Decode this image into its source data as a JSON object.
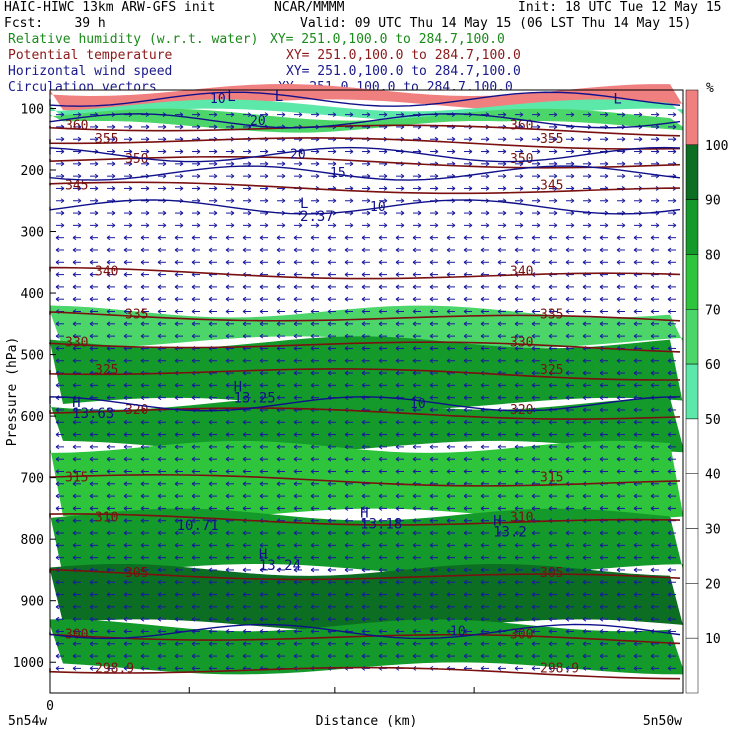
{
  "header": {
    "title_left": "HAIC-HIWC 13km ARW-GFS init",
    "org": "NCAR/MMMM",
    "init": "Init: 18 UTC Tue 12 May 15",
    "fcst": "Fcst:    39 h",
    "valid": "Valid: 09 UTC Thu 14 May 15 (06 LST Thu 14 May 15)",
    "fields": [
      {
        "name": "Relative humidity (w.r.t. water)",
        "xy": "XY= 251.0,100.0 to 284.7,100.0",
        "color": "#1a8a1a"
      },
      {
        "name": "Potential temperature",
        "xy": "XY= 251.0,100.0 to 284.7,100.0",
        "color": "#8b1a1a"
      },
      {
        "name": "Horizontal wind speed",
        "xy": "XY= 251.0,100.0 to 284.7,100.0",
        "color": "#1a1a8b"
      },
      {
        "name": "Circulation vectors",
        "xy": "XY= 251.0,100.0 to 284.7,100.0",
        "color": "#1a1a8b"
      }
    ]
  },
  "chart_data": {
    "type": "heatmap",
    "ylabel": "Pressure (hPa)",
    "xlabel": "Distance (km)",
    "x_start_label": "5n54w",
    "x_end_label": "5n50w",
    "x_zero_label": "0",
    "y_ticks": [
      100,
      200,
      300,
      400,
      500,
      600,
      700,
      800,
      900,
      1000
    ],
    "ylim": [
      1050,
      70
    ],
    "colorbar": {
      "unit": "%",
      "levels": [
        10,
        20,
        30,
        40,
        50,
        60,
        70,
        80,
        90,
        100
      ],
      "colors": [
        "#ffffff",
        "#ffffff",
        "#ffffff",
        "#ffffff",
        "#ffffff",
        "#5ce8a8",
        "#4cd66a",
        "#2ec43c",
        "#149a2a",
        "#0b6e22",
        "#f08080"
      ]
    },
    "rh_bands": [
      {
        "p_top": 70,
        "p_bot": 95,
        "rh": 100
      },
      {
        "p_top": 95,
        "p_bot": 110,
        "rh": 50
      },
      {
        "p_top": 110,
        "p_bot": 130,
        "rh": 60
      },
      {
        "p_top": 130,
        "p_bot": 470,
        "rh": 30
      },
      {
        "p_top": 430,
        "p_bot": 480,
        "rh": 60
      },
      {
        "p_top": 480,
        "p_bot": 580,
        "rh": 80
      },
      {
        "p_top": 580,
        "p_bot": 650,
        "rh": 80
      },
      {
        "p_top": 650,
        "p_bot": 760,
        "rh": 70
      },
      {
        "p_top": 760,
        "p_bot": 850,
        "rh": 80
      },
      {
        "p_top": 850,
        "p_bot": 940,
        "rh": 90
      },
      {
        "p_top": 940,
        "p_bot": 1010,
        "rh": 80
      }
    ],
    "theta_contours": [
      {
        "value": 360,
        "p": 128
      },
      {
        "value": 355,
        "p": 150
      },
      {
        "value": 350,
        "p": 182
      },
      {
        "value": 345,
        "p": 225
      },
      {
        "value": 340,
        "p": 365
      },
      {
        "value": 335,
        "p": 435
      },
      {
        "value": 330,
        "p": 480
      },
      {
        "value": 325,
        "p": 525
      },
      {
        "value": 320,
        "p": 590
      },
      {
        "value": 315,
        "p": 700
      },
      {
        "value": 310,
        "p": 765
      },
      {
        "value": 305,
        "p": 855
      },
      {
        "value": 300,
        "p": 955
      },
      {
        "value": 298.9,
        "p": 1010
      }
    ],
    "wind_contours": [
      {
        "value": 10,
        "p": 85
      },
      {
        "value": 20,
        "p": 120
      },
      {
        "value": 20,
        "p": 175
      },
      {
        "value": 15,
        "p": 205
      },
      {
        "value": 10,
        "p": 260
      },
      {
        "value": 10,
        "p": 580
      },
      {
        "value": 10,
        "p": 950
      }
    ],
    "labels": [
      {
        "text": "L",
        "x_frac": 0.395,
        "p": 262
      },
      {
        "text": "2.37",
        "x_frac": 0.395,
        "p": 283
      },
      {
        "text": "H",
        "x_frac": 0.29,
        "p": 560
      },
      {
        "text": "13.25",
        "x_frac": 0.29,
        "p": 578
      },
      {
        "text": "H",
        "x_frac": 0.035,
        "p": 585
      },
      {
        "text": "13.63",
        "x_frac": 0.035,
        "p": 603
      },
      {
        "text": "10.71",
        "x_frac": 0.2,
        "p": 785
      },
      {
        "text": "H",
        "x_frac": 0.49,
        "p": 765
      },
      {
        "text": "13.18",
        "x_frac": 0.49,
        "p": 783
      },
      {
        "text": "H",
        "x_frac": 0.7,
        "p": 778
      },
      {
        "text": "13.2",
        "x_frac": 0.7,
        "p": 796
      },
      {
        "text": "H",
        "x_frac": 0.33,
        "p": 832
      },
      {
        "text": "13.24",
        "x_frac": 0.33,
        "p": 850
      },
      {
        "text": "L",
        "x_frac": 0.355,
        "p": 88
      },
      {
        "text": "L",
        "x_frac": 0.28,
        "p": 88
      },
      {
        "text": "L",
        "x_frac": 0.89,
        "p": 92
      }
    ],
    "grid": false
  }
}
